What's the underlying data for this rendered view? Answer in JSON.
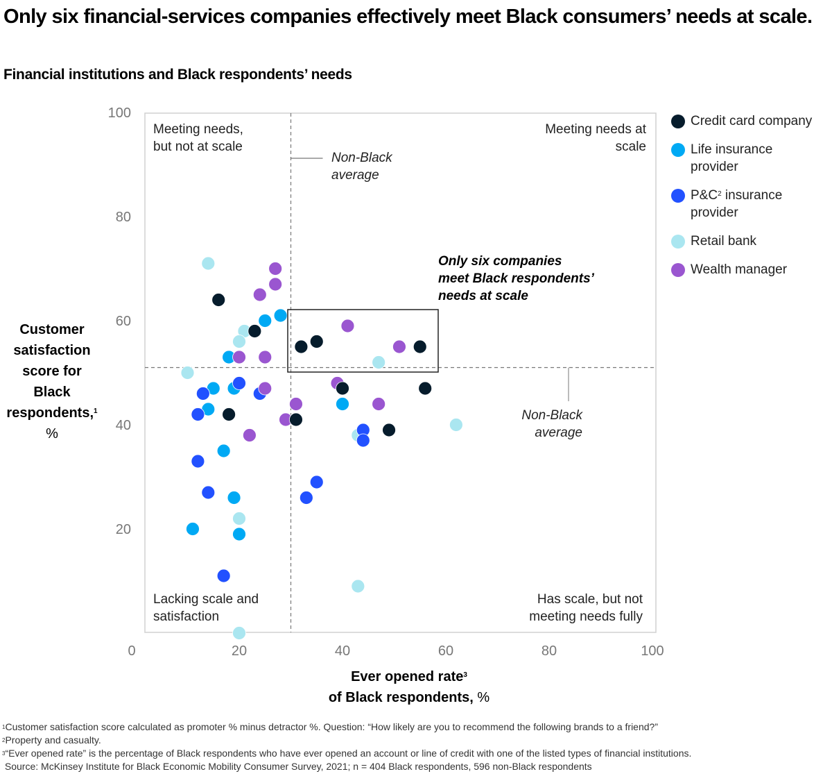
{
  "header": {
    "title": "Only six financial-services companies effectively meet Black consumers’ needs at scale.",
    "subtitle": "Financial institutions and Black respondents’ needs"
  },
  "axes": {
    "y_label_lines": [
      "Customer",
      "satisfaction",
      "score for",
      "Black",
      "respondents,"
    ],
    "y_label_sup": "1",
    "y_label_unit": "%",
    "x_label_line1": "Ever opened rate",
    "x_label_sup": "3",
    "x_label_line2": "of Black respondents, ",
    "x_label_unit": "%"
  },
  "quadrants": {
    "top_left": [
      "Meeting needs,",
      "but not at scale"
    ],
    "top_right": [
      "Meeting needs at",
      "scale"
    ],
    "bottom_left": [
      "Lacking scale and",
      "satisfaction"
    ],
    "bottom_right": [
      "Has scale, but not",
      "meeting needs fully"
    ]
  },
  "averages": {
    "vertical_label": [
      "Non-Black",
      "average"
    ],
    "horizontal_label": [
      "Non-Black",
      "average"
    ]
  },
  "callout": [
    "Only six companies",
    "meet Black respondents’",
    "needs at scale"
  ],
  "legend": [
    {
      "key": "credit",
      "label": "Credit card company",
      "color": "#061c2c"
    },
    {
      "key": "life",
      "label_pre": "Life insurance",
      "label_post": "provider",
      "color": "#00a9f4"
    },
    {
      "key": "pc",
      "label_pre": "P&C",
      "sup": "2",
      "label_mid": " insurance",
      "label_post": "provider",
      "color": "#2251ff"
    },
    {
      "key": "retail",
      "label": "Retail bank",
      "color": "#aae6f0"
    },
    {
      "key": "wealth",
      "label": "Wealth manager",
      "color": "#9a56d0"
    }
  ],
  "footnotes": {
    "f1_sup": "1",
    "f1": "Customer satisfaction score calculated as promoter % minus detractor %. Question: “How likely are you to recommend the following brands to a friend?”",
    "f2_sup": "2",
    "f2": "Property and casualty.",
    "f3_sup": "3",
    "f3": "“Ever opened rate” is the percentage of Black respondents who have ever opened an account or line of credit with one of the listed types of financial institutions.",
    "source": "Source: McKinsey Institute for Black Economic Mobility Consumer Survey, 2021; n = 404 Black respondents, 596 non-Black respondents"
  },
  "chart_data": {
    "type": "scatter",
    "title": "Financial institutions and Black respondents’ needs",
    "xlabel": "Ever opened rate of Black respondents, %",
    "ylabel": "Customer satisfaction score for Black respondents, %",
    "xlim": [
      0,
      100
    ],
    "ylim": [
      0,
      100
    ],
    "xticks": [
      0,
      20,
      40,
      60,
      80,
      100
    ],
    "yticks": [
      20,
      40,
      60,
      80,
      100
    ],
    "grid": false,
    "legend_position": "right",
    "reference_lines": {
      "non_black_avg_x": 30,
      "non_black_avg_y": 51
    },
    "highlight_box": {
      "x": [
        29,
        58
      ],
      "y": [
        50,
        62
      ],
      "label": "Only six companies meet Black respondents’ needs at scale"
    },
    "series": [
      {
        "name": "Credit card company",
        "key": "credit",
        "color": "#061c2c",
        "points": [
          [
            16,
            64
          ],
          [
            23,
            58
          ],
          [
            18,
            42
          ],
          [
            32,
            55
          ],
          [
            35,
            56
          ],
          [
            55,
            55
          ],
          [
            40,
            47
          ],
          [
            56,
            47
          ],
          [
            31,
            41
          ],
          [
            49,
            39
          ]
        ]
      },
      {
        "name": "Life insurance provider",
        "key": "life",
        "color": "#00a9f4",
        "points": [
          [
            28,
            61
          ],
          [
            25,
            60
          ],
          [
            18,
            53
          ],
          [
            15,
            47
          ],
          [
            19,
            47
          ],
          [
            14,
            43
          ],
          [
            17,
            35
          ],
          [
            19,
            26
          ],
          [
            11,
            20
          ],
          [
            20,
            19
          ],
          [
            40,
            44
          ]
        ]
      },
      {
        "name": "P&C insurance provider",
        "key": "pc",
        "color": "#2251ff",
        "points": [
          [
            13,
            46
          ],
          [
            20,
            48
          ],
          [
            24,
            46
          ],
          [
            12,
            42
          ],
          [
            12,
            33
          ],
          [
            14,
            27
          ],
          [
            17,
            11
          ],
          [
            44,
            39
          ],
          [
            44,
            37
          ],
          [
            35,
            29
          ],
          [
            33,
            26
          ]
        ]
      },
      {
        "name": "Retail bank",
        "key": "retail",
        "color": "#aae6f0",
        "points": [
          [
            14,
            71
          ],
          [
            21,
            58
          ],
          [
            20,
            56
          ],
          [
            10,
            50
          ],
          [
            20,
            22
          ],
          [
            20,
            0
          ],
          [
            47,
            52
          ],
          [
            43,
            38
          ],
          [
            62,
            40
          ],
          [
            43,
            9
          ]
        ]
      },
      {
        "name": "Wealth manager",
        "key": "wealth",
        "color": "#9a56d0",
        "points": [
          [
            27,
            70
          ],
          [
            27,
            67
          ],
          [
            24,
            65
          ],
          [
            20,
            53
          ],
          [
            25,
            53
          ],
          [
            25,
            47
          ],
          [
            22,
            38
          ],
          [
            31,
            44
          ],
          [
            29,
            41
          ],
          [
            41,
            59
          ],
          [
            51,
            55
          ],
          [
            39,
            48
          ],
          [
            47,
            44
          ]
        ]
      }
    ]
  }
}
